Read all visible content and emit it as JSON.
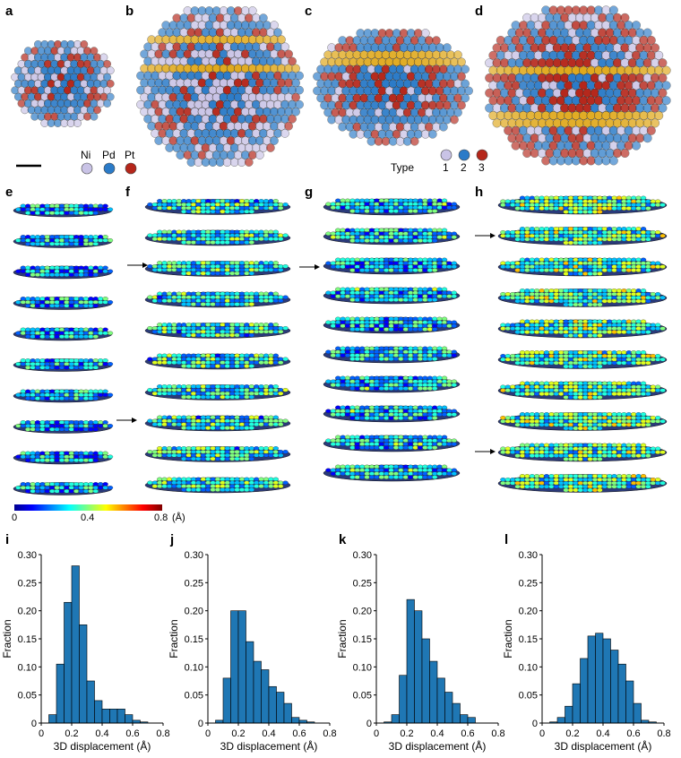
{
  "figure": {
    "panel_labels": [
      "a",
      "b",
      "c",
      "d",
      "e",
      "f",
      "g",
      "h",
      "i",
      "j",
      "k",
      "l"
    ]
  },
  "element_legend": {
    "items": [
      {
        "label": "Ni",
        "color": "#c9c3e6"
      },
      {
        "label": "Pd",
        "color": "#2b7bc8"
      },
      {
        "label": "Pt",
        "color": "#b5261a"
      }
    ]
  },
  "type_legend": {
    "title": "Type",
    "items": [
      {
        "label": "1",
        "color": "#c9c3e6"
      },
      {
        "label": "2",
        "color": "#2b7bc8"
      },
      {
        "label": "3",
        "color": "#b5261a"
      }
    ]
  },
  "colors": {
    "ni": "#c9c3e6",
    "pd": "#2b7bc8",
    "pt": "#b5261a",
    "twin": "#e0a81a",
    "bar": "#1f77b4"
  },
  "colorbar": {
    "ticks": [
      "0",
      "0.4",
      "0.8"
    ],
    "unit": "(Å)"
  },
  "chart_data": [
    {
      "type": "bar",
      "panel": "i",
      "categories": [
        0.025,
        0.075,
        0.125,
        0.175,
        0.225,
        0.275,
        0.325,
        0.375,
        0.425,
        0.475,
        0.525,
        0.575,
        0.625,
        0.675,
        0.725,
        0.775
      ],
      "values": [
        0.0,
        0.015,
        0.105,
        0.215,
        0.28,
        0.175,
        0.075,
        0.04,
        0.025,
        0.025,
        0.025,
        0.015,
        0.005,
        0.002,
        0.0,
        0.0
      ],
      "xlabel": "3D displacement (Å)",
      "ylabel": "Fraction",
      "xlim": [
        0,
        0.8
      ],
      "ylim": [
        0,
        0.3
      ],
      "xticks": [
        "0",
        "0.2",
        "0.4",
        "0.6",
        "0.8"
      ],
      "yticks": [
        "0",
        "0.05",
        "0.10",
        "0.15",
        "0.20",
        "0.25",
        "0.30"
      ]
    },
    {
      "type": "bar",
      "panel": "j",
      "categories": [
        0.025,
        0.075,
        0.125,
        0.175,
        0.225,
        0.275,
        0.325,
        0.375,
        0.425,
        0.475,
        0.525,
        0.575,
        0.625,
        0.675,
        0.725,
        0.775
      ],
      "values": [
        0.0,
        0.005,
        0.08,
        0.2,
        0.2,
        0.145,
        0.11,
        0.095,
        0.065,
        0.055,
        0.035,
        0.01,
        0.005,
        0.002,
        0.0,
        0.0
      ],
      "xlabel": "3D displacement (Å)",
      "ylabel": "Fraction",
      "xlim": [
        0,
        0.8
      ],
      "ylim": [
        0,
        0.3
      ],
      "xticks": [
        "0",
        "0.2",
        "0.4",
        "0.6",
        "0.8"
      ],
      "yticks": [
        "0",
        "0.05",
        "0.10",
        "0.15",
        "0.20",
        "0.25",
        "0.30"
      ]
    },
    {
      "type": "bar",
      "panel": "k",
      "categories": [
        0.025,
        0.075,
        0.125,
        0.175,
        0.225,
        0.275,
        0.325,
        0.375,
        0.425,
        0.475,
        0.525,
        0.575,
        0.625,
        0.675,
        0.725,
        0.775
      ],
      "values": [
        0.0,
        0.002,
        0.015,
        0.085,
        0.22,
        0.2,
        0.15,
        0.11,
        0.08,
        0.055,
        0.035,
        0.015,
        0.01,
        0.0,
        0.0,
        0.0
      ],
      "xlabel": "3D displacement (Å)",
      "ylabel": "Fraction",
      "xlim": [
        0,
        0.8
      ],
      "ylim": [
        0,
        0.3
      ],
      "xticks": [
        "0",
        "0.2",
        "0.4",
        "0.6",
        "0.8"
      ],
      "yticks": [
        "0",
        "0.05",
        "0.10",
        "0.15",
        "0.20",
        "0.25",
        "0.30"
      ]
    },
    {
      "type": "bar",
      "panel": "l",
      "categories": [
        0.025,
        0.075,
        0.125,
        0.175,
        0.225,
        0.275,
        0.325,
        0.375,
        0.425,
        0.475,
        0.525,
        0.575,
        0.625,
        0.675,
        0.725,
        0.775
      ],
      "values": [
        0.0,
        0.002,
        0.01,
        0.03,
        0.07,
        0.115,
        0.155,
        0.16,
        0.15,
        0.13,
        0.105,
        0.075,
        0.035,
        0.005,
        0.002,
        0.0
      ],
      "xlabel": "3D displacement (Å)",
      "ylabel": "Fraction",
      "xlim": [
        0,
        0.8
      ],
      "ylim": [
        0,
        0.3
      ],
      "xticks": [
        "0",
        "0.2",
        "0.4",
        "0.6",
        "0.8"
      ],
      "yticks": [
        "0",
        "0.05",
        "0.10",
        "0.15",
        "0.20",
        "0.25",
        "0.30"
      ]
    }
  ]
}
